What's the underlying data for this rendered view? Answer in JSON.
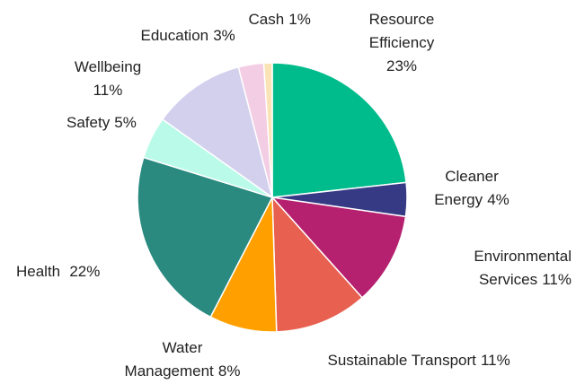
{
  "chart_data": {
    "type": "pie",
    "categories": [
      "Resource Efficiency",
      "Cleaner Energy",
      "Environmental Services",
      "Sustainable Transport",
      "Water Management",
      "Health",
      "Safety",
      "Wellbeing",
      "Education",
      "Cash"
    ],
    "values": [
      23,
      4,
      11,
      11,
      8,
      22,
      5,
      11,
      3,
      1
    ],
    "value_labels": [
      "23%",
      "4%",
      "11%",
      "11%",
      "8%",
      "22%",
      "5%",
      "11%",
      "3%",
      "1%"
    ],
    "colors": [
      "#00bc8c",
      "#363a85",
      "#b5216f",
      "#e8604f",
      "#ffa000",
      "#2a8a80",
      "#b9fbe8",
      "#d3d0ee",
      "#f3cde3",
      "#fbe3b8"
    ]
  }
}
